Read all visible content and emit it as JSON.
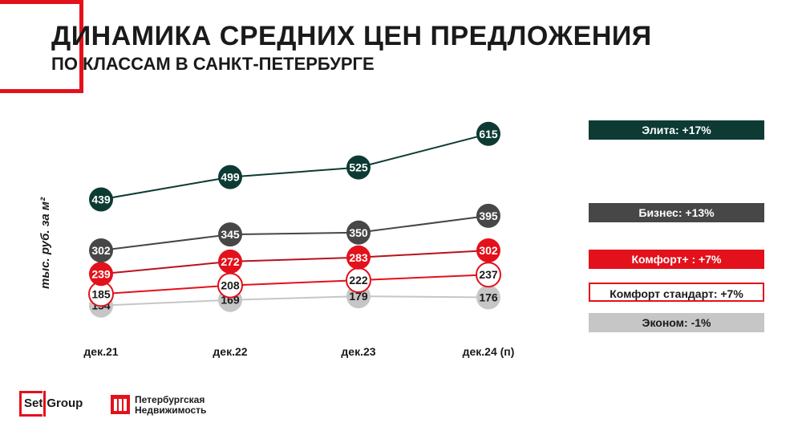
{
  "header": {
    "title": "ДИНАМИКА СРЕДНИХ ЦЕН ПРЕДЛОЖЕНИЯ",
    "subtitle": "ПО КЛАССАМ В САНКТ-ПЕТЕРБУРГЕ"
  },
  "chart_data": {
    "type": "line",
    "title": "ДИНАМИКА СРЕДНИХ ЦЕН ПРЕДЛОЖЕНИЯ",
    "subtitle": "ПО КЛАССАМ В САНКТ-ПЕТЕРБУРГЕ",
    "xlabel": "",
    "ylabel": "тыс. руб. за м²",
    "categories": [
      "дек.21",
      "дек.22",
      "дек.23",
      "дек.24 (п)"
    ],
    "grid": false,
    "legend_position": "right",
    "series": [
      {
        "name": "Элита",
        "legend": "Элита: +17%",
        "values": [
          439,
          499,
          525,
          615
        ],
        "color": "#0d3b34"
      },
      {
        "name": "Бизнес",
        "legend": "Бизнес: +13%",
        "values": [
          302,
          345,
          350,
          395
        ],
        "color": "#474747"
      },
      {
        "name": "Комфорт+",
        "legend": "Комфорт+  : +7%",
        "values": [
          239,
          272,
          283,
          302
        ],
        "color": "#e3111b"
      },
      {
        "name": "Комфорт стандарт",
        "legend": "Комфорт стандарт: +7%",
        "values": [
          185,
          208,
          222,
          237
        ],
        "color": "#e3111b"
      },
      {
        "name": "Эконом",
        "legend": "Эконом: -1%",
        "values": [
          154,
          169,
          179,
          176
        ],
        "color": "#c6c6c6"
      }
    ]
  },
  "logos": {
    "setgroup_a": "Set",
    "setgroup_b": "Group",
    "pn_line1": "Петербургская",
    "pn_line2": "Недвижимость"
  },
  "colors": {
    "accent": "#e3111b",
    "elite": "#0d3b34",
    "business": "#474747",
    "economy": "#c6c6c6"
  }
}
